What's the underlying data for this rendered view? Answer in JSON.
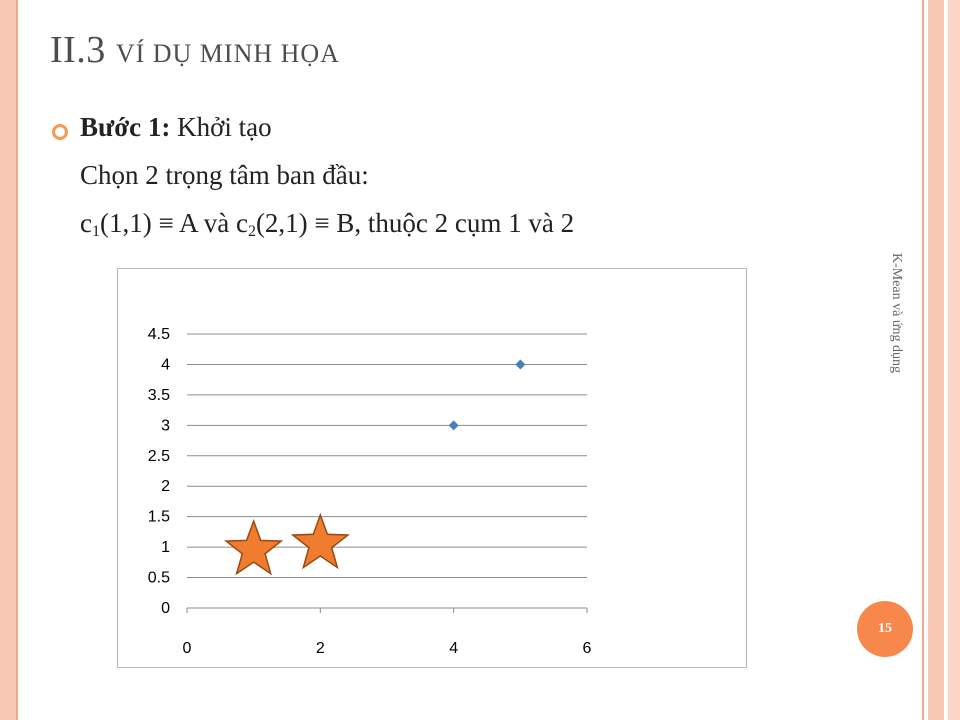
{
  "slide": {
    "title_main": "II.3 ",
    "title_caps": "VÍ DỤ MINH HỌA",
    "step_label": "Bước 1:",
    "step_text": "Khởi tạo",
    "line2": "Chọn 2 trọng tâm ban đầu:",
    "line3": {
      "c1": "c",
      "sub1": "1",
      "mid": "(1,1) ≡ A và c",
      "sub2": "2",
      "end": "(2,1) ≡ B, thuộc 2 cụm 1 và 2"
    },
    "side_label": "K-Mean và ứng dụng",
    "page_number": "15",
    "colors": {
      "accent": "#f7874a",
      "border": "#f7c8b4",
      "bullet": "#f39c4a"
    }
  },
  "chart_data": {
    "type": "scatter",
    "xlim": [
      0,
      6
    ],
    "ylim": [
      0,
      4.5
    ],
    "x_ticks": [
      "0",
      "2",
      "4",
      "6"
    ],
    "y_ticks": [
      "0",
      "0.5",
      "1",
      "1.5",
      "2",
      "2.5",
      "3",
      "3.5",
      "4",
      "4.5"
    ],
    "grid": "horizontal",
    "series": [
      {
        "marker": "diamond",
        "color": "#4a7ebb",
        "points": [
          [
            4,
            3
          ],
          [
            5,
            4
          ]
        ]
      },
      {
        "marker": "star",
        "color": "#f07c30",
        "points": [
          [
            1,
            1
          ],
          [
            2,
            1.1
          ]
        ]
      }
    ]
  }
}
